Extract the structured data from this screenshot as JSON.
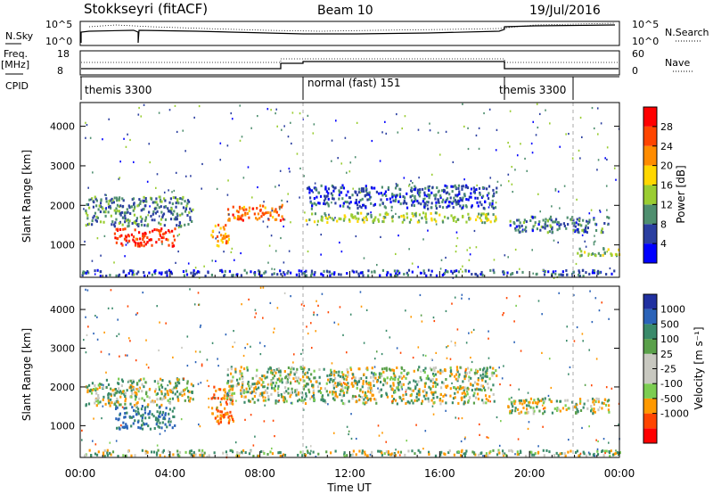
{
  "header": {
    "station": "Stokkseyri (fitACF)",
    "beam": "Beam 10",
    "date": "19/Jul/2016"
  },
  "panels": {
    "nsky": {
      "label": "N.Sky",
      "ticks_left": [
        "10^5",
        "10^0"
      ],
      "right_label": "N.Search",
      "ticks_right": [
        "10^5",
        "10^0"
      ]
    },
    "freq": {
      "label_line1": "Freq.",
      "label_line2": "[MHz]",
      "ticks_left": [
        "18",
        "8"
      ],
      "right_label": "Nave",
      "ticks_right": [
        "60",
        "0"
      ]
    },
    "cpid": {
      "label": "CPID",
      "segments": [
        "themis 3300",
        "normal (fast) 151",
        "themis 3300"
      ]
    }
  },
  "colors": {
    "power": [
      "#0000ff",
      "#2b3fa0",
      "#4f8f6f",
      "#9acd32",
      "#ffd700",
      "#ff8c00",
      "#ff4500",
      "#ff0000"
    ],
    "velocity": [
      "#ff0000",
      "#ff4500",
      "#ff9900",
      "#7ccd52",
      "#c8c8c0",
      "#c8c8c0",
      "#5aa04a",
      "#3a8a6a",
      "#2b63b8",
      "#2030a0"
    ]
  },
  "chart_data": [
    {
      "type": "heatmap",
      "title": "Power",
      "ylabel": "Slant Range [km]",
      "y_ticks": [
        "1000",
        "2000",
        "3000",
        "4000"
      ],
      "ylim": [
        180,
        4600
      ],
      "colorbar": {
        "label": "Power [dB]",
        "ticks": [
          "4",
          "8",
          "12",
          "16",
          "20",
          "24",
          "28"
        ],
        "range": [
          0,
          32
        ]
      },
      "echo_bands": [
        {
          "t0": 0.0,
          "t1": 24.0,
          "r0": 200,
          "r1": 350,
          "level": 6
        },
        {
          "t0": 1.5,
          "t1": 4.2,
          "r0": 950,
          "r1": 1400,
          "level": 28
        },
        {
          "t0": 0.2,
          "t1": 5.0,
          "r0": 1450,
          "r1": 2200,
          "level": 9
        },
        {
          "t0": 5.8,
          "t1": 6.6,
          "r0": 950,
          "r1": 1500,
          "level": 22
        },
        {
          "t0": 6.5,
          "t1": 9.0,
          "r0": 1600,
          "r1": 2000,
          "level": 24
        },
        {
          "t0": 10.0,
          "t1": 18.5,
          "r0": 1550,
          "r1": 1800,
          "level": 14
        },
        {
          "t0": 10.0,
          "t1": 18.5,
          "r0": 1900,
          "r1": 2500,
          "level": 6
        },
        {
          "t0": 19.0,
          "t1": 23.5,
          "r0": 1300,
          "r1": 1700,
          "level": 8
        },
        {
          "t0": 22.0,
          "t1": 24.0,
          "r0": 700,
          "r1": 900,
          "level": 14
        }
      ]
    },
    {
      "type": "heatmap",
      "title": "Velocity",
      "ylabel": "Slant Range [km]",
      "xlabel": "Time UT",
      "x_ticks": [
        "00:00",
        "04:00",
        "08:00",
        "12:00",
        "16:00",
        "20:00",
        "00:00"
      ],
      "y_ticks": [
        "1000",
        "2000",
        "3000",
        "4000"
      ],
      "ylim": [
        180,
        4600
      ],
      "colorbar": {
        "label": "Velocity [m s⁻¹]",
        "ticks": [
          "1000",
          "500",
          "100",
          "25",
          "-25",
          "-100",
          "-500",
          "-1000"
        ]
      },
      "echo_bands": [
        {
          "t0": 0.0,
          "t1": 24.0,
          "r0": 200,
          "r1": 350,
          "velocity": 20
        },
        {
          "t0": 1.5,
          "t1": 4.2,
          "r0": 900,
          "r1": 1500,
          "velocity": 300
        },
        {
          "t0": 0.2,
          "t1": 5.0,
          "r0": 1500,
          "r1": 2200,
          "velocity": 0
        },
        {
          "t0": 5.8,
          "t1": 6.8,
          "r0": 1000,
          "r1": 2000,
          "velocity": -300
        },
        {
          "t0": 6.5,
          "t1": 18.5,
          "r0": 1550,
          "r1": 2500,
          "velocity": 0
        },
        {
          "t0": 19.0,
          "t1": 23.5,
          "r0": 1300,
          "r1": 1700,
          "velocity": 0
        }
      ]
    }
  ]
}
